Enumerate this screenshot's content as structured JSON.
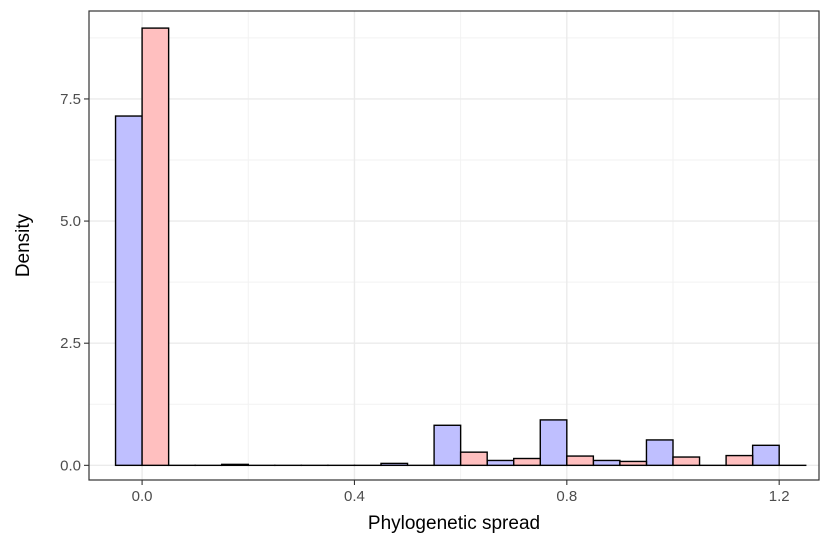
{
  "chart_data": {
    "type": "bar",
    "title": "",
    "xlabel": "Phylogenetic spread",
    "ylabel": "Density",
    "xlim": [
      -0.1,
      1.275
    ],
    "ylim": [
      -0.3,
      9.3
    ],
    "x_ticks": [
      0.0,
      0.4,
      0.8,
      1.2
    ],
    "x_tick_labels": [
      "0.0",
      "0.4",
      "0.8",
      "1.2"
    ],
    "y_ticks": [
      0.0,
      2.5,
      5.0,
      7.5
    ],
    "y_tick_labels": [
      "0.0",
      "2.5",
      "5.0",
      "7.5"
    ],
    "grid": true,
    "bin_width": 0.1,
    "bins": [
      0.0,
      0.1,
      0.2,
      0.3,
      0.4,
      0.5,
      0.6,
      0.7,
      0.8,
      0.9,
      1.0,
      1.1,
      1.2
    ],
    "series": [
      {
        "color": "#bfbfff",
        "values": [
          7.15,
          0.0,
          0.02,
          0.0,
          0.0,
          0.04,
          0.82,
          0.1,
          0.93,
          0.1,
          0.52,
          0.0,
          0.41
        ]
      },
      {
        "color": "#ffbfbf",
        "values": [
          8.95,
          0.0,
          0.0,
          0.0,
          0.0,
          0.0,
          0.27,
          0.14,
          0.19,
          0.08,
          0.17,
          0.2,
          0.0
        ]
      }
    ]
  }
}
